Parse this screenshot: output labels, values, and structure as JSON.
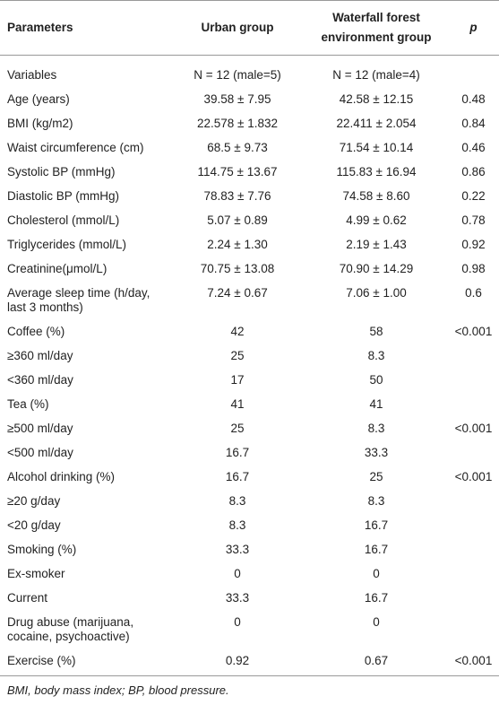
{
  "table": {
    "header": [
      "Parameters",
      "Urban group",
      "Waterfall forest environment group",
      "p"
    ],
    "rows": [
      [
        "Variables",
        "N = 12 (male=5)",
        "N = 12 (male=4)",
        null
      ],
      [
        "Age (years)",
        "39.58 ± 7.95",
        "42.58 ± 12.15",
        "0.48"
      ],
      [
        "BMI (kg/m2)",
        "22.578 ± 1.832",
        "22.411 ± 2.054",
        "0.84"
      ],
      [
        "Waist circumference (cm)",
        "68.5 ± 9.73",
        "71.54 ± 10.14",
        "0.46"
      ],
      [
        "Systolic BP (mmHg)",
        "114.75 ± 13.67",
        "115.83 ± 16.94",
        "0.86"
      ],
      [
        "Diastolic BP (mmHg)",
        "78.83 ± 7.76",
        "74.58 ± 8.60",
        "0.22"
      ],
      [
        "Cholesterol (mmol/L)",
        "5.07 ± 0.89",
        "4.99 ± 0.62",
        "0.78"
      ],
      [
        "Triglycerides (mmol/L)",
        "2.24 ± 1.30",
        "2.19 ± 1.43",
        "0.92"
      ],
      [
        "Creatinine(μmol/L)",
        "70.75 ± 13.08",
        "70.90 ± 14.29",
        "0.98"
      ],
      [
        "Average sleep time (h/day, last 3 months)",
        "7.24 ± 0.67",
        "7.06 ± 1.00",
        "0.6"
      ],
      [
        "Coffee (%)",
        "42",
        "58",
        "<0.001"
      ],
      [
        "≥360 ml/day",
        "25",
        "8.3",
        null
      ],
      [
        "<360 ml/day",
        "17",
        "50",
        null
      ],
      [
        "Tea (%)",
        "41",
        "41",
        null
      ],
      [
        "≥500 ml/day",
        "25",
        "8.3",
        "<0.001"
      ],
      [
        "<500 ml/day",
        "16.7",
        "33.3",
        null
      ],
      [
        "Alcohol drinking (%)",
        "16.7",
        "25",
        "<0.001"
      ],
      [
        "≥20 g/day",
        "8.3",
        "8.3",
        null
      ],
      [
        "<20 g/day",
        "8.3",
        "16.7",
        null
      ],
      [
        "Smoking (%)",
        "33.3",
        "16.7",
        null
      ],
      [
        "Ex-smoker",
        "0",
        "0",
        null
      ],
      [
        "Current",
        "33.3",
        "16.7",
        null
      ],
      [
        "Drug abuse (marijuana, cocaine, psychoactive)",
        "0",
        "0",
        null
      ],
      [
        "Exercise (%)",
        "0.92",
        "0.67",
        "<0.001"
      ]
    ]
  },
  "footnote": "BMI, body mass index; BP, blood pressure."
}
